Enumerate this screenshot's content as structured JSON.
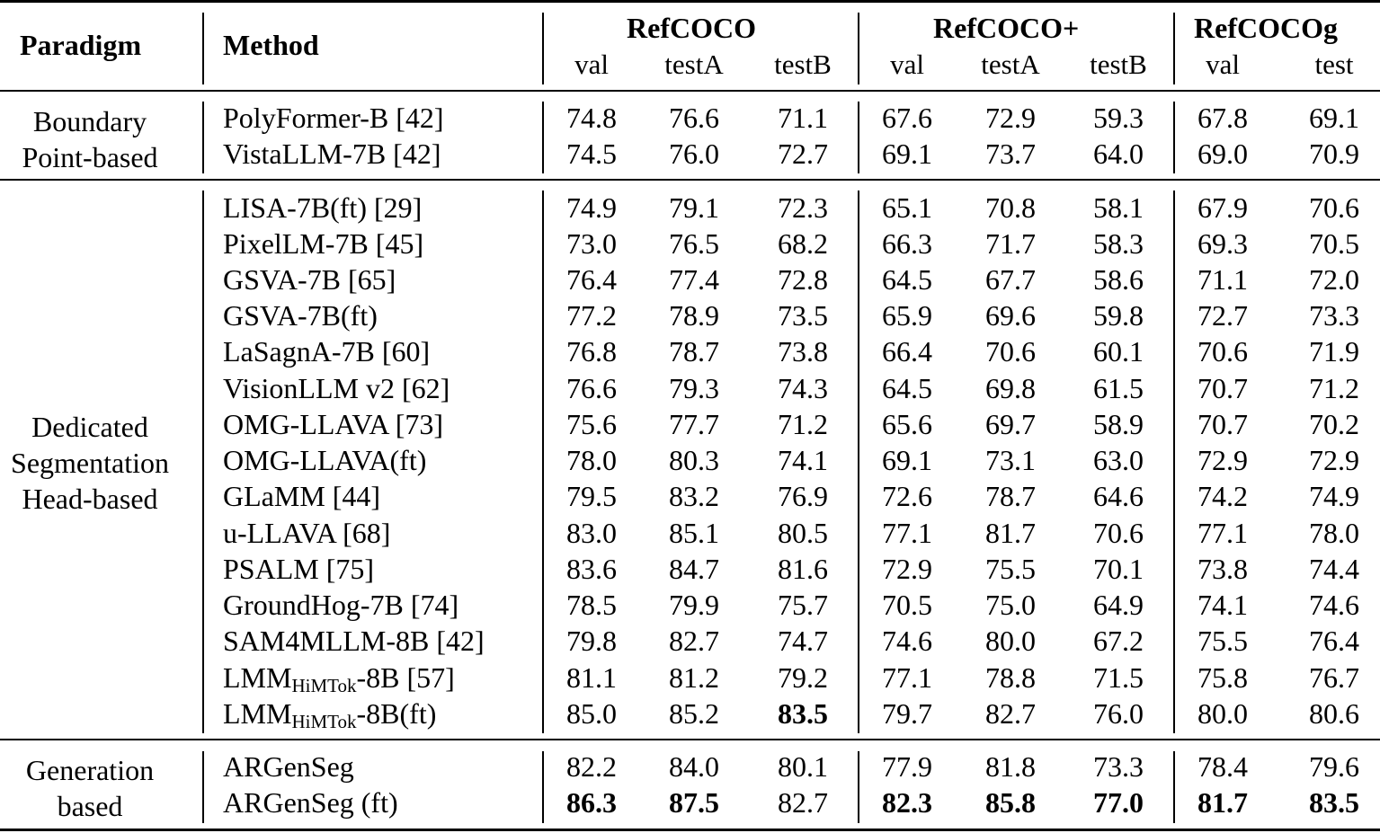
{
  "header": {
    "paradigm": "Paradigm",
    "method": "Method",
    "groups": [
      "RefCOCO",
      "RefCOCO+",
      "RefCOCOg"
    ],
    "splits": [
      "val",
      "testA",
      "testB",
      "val",
      "testA",
      "testB",
      "val",
      "test"
    ]
  },
  "sections": [
    {
      "paradigm_lines": [
        "Boundary",
        "Point-based"
      ],
      "rows": [
        {
          "method": "PolyFormer-B [42]",
          "values": [
            "74.8",
            "76.6",
            "71.1",
            "67.6",
            "72.9",
            "59.3",
            "67.8",
            "69.1"
          ],
          "bold": []
        },
        {
          "method": "VistaLLM-7B [42]",
          "values": [
            "74.5",
            "76.0",
            "72.7",
            "69.1",
            "73.7",
            "64.0",
            "69.0",
            "70.9"
          ],
          "bold": []
        }
      ]
    },
    {
      "paradigm_lines": [
        "Dedicated",
        "Segmentation",
        "Head-based"
      ],
      "rows": [
        {
          "method": "LISA-7B(ft) [29]",
          "values": [
            "74.9",
            "79.1",
            "72.3",
            "65.1",
            "70.8",
            "58.1",
            "67.9",
            "70.6"
          ],
          "bold": []
        },
        {
          "method": "PixelLM-7B [45]",
          "values": [
            "73.0",
            "76.5",
            "68.2",
            "66.3",
            "71.7",
            "58.3",
            "69.3",
            "70.5"
          ],
          "bold": []
        },
        {
          "method": "GSVA-7B [65]",
          "values": [
            "76.4",
            "77.4",
            "72.8",
            "64.5",
            "67.7",
            "58.6",
            "71.1",
            "72.0"
          ],
          "bold": []
        },
        {
          "method": "GSVA-7B(ft)",
          "values": [
            "77.2",
            "78.9",
            "73.5",
            "65.9",
            "69.6",
            "59.8",
            "72.7",
            "73.3"
          ],
          "bold": []
        },
        {
          "method": "LaSagnA-7B [60]",
          "values": [
            "76.8",
            "78.7",
            "73.8",
            "66.4",
            "70.6",
            "60.1",
            "70.6",
            "71.9"
          ],
          "bold": []
        },
        {
          "method": "VisionLLM v2 [62]",
          "values": [
            "76.6",
            "79.3",
            "74.3",
            "64.5",
            "69.8",
            "61.5",
            "70.7",
            "71.2"
          ],
          "bold": []
        },
        {
          "method": "OMG-LLAVA [73]",
          "values": [
            "75.6",
            "77.7",
            "71.2",
            "65.6",
            "69.7",
            "58.9",
            "70.7",
            "70.2"
          ],
          "bold": []
        },
        {
          "method": "OMG-LLAVA(ft)",
          "values": [
            "78.0",
            "80.3",
            "74.1",
            "69.1",
            "73.1",
            "63.0",
            "72.9",
            "72.9"
          ],
          "bold": []
        },
        {
          "method": "GLaMM [44]",
          "values": [
            "79.5",
            "83.2",
            "76.9",
            "72.6",
            "78.7",
            "64.6",
            "74.2",
            "74.9"
          ],
          "bold": []
        },
        {
          "method": "u-LLAVA [68]",
          "values": [
            "83.0",
            "85.1",
            "80.5",
            "77.1",
            "81.7",
            "70.6",
            "77.1",
            "78.0"
          ],
          "bold": []
        },
        {
          "method": "PSALM [75]",
          "values": [
            "83.6",
            "84.7",
            "81.6",
            "72.9",
            "75.5",
            "70.1",
            "73.8",
            "74.4"
          ],
          "bold": []
        },
        {
          "method": "GroundHog-7B [74]",
          "values": [
            "78.5",
            "79.9",
            "75.7",
            "70.5",
            "75.0",
            "64.9",
            "74.1",
            "74.6"
          ],
          "bold": []
        },
        {
          "method": "SAM4MLLM-8B [42]",
          "values": [
            "79.8",
            "82.7",
            "74.7",
            "74.6",
            "80.0",
            "67.2",
            "75.5",
            "76.4"
          ],
          "bold": []
        },
        {
          "method": "LMM",
          "method_sub": "HiMTok",
          "method_suffix": "-8B [57]",
          "values": [
            "81.1",
            "81.2",
            "79.2",
            "77.1",
            "78.8",
            "71.5",
            "75.8",
            "76.7"
          ],
          "bold": []
        },
        {
          "method": "LMM",
          "method_sub": "HiMTok",
          "method_suffix": "-8B(ft)",
          "values": [
            "85.0",
            "85.2",
            "83.5",
            "79.7",
            "82.7",
            "76.0",
            "80.0",
            "80.6"
          ],
          "bold": [
            2
          ]
        }
      ]
    },
    {
      "paradigm_lines": [
        "Generation",
        "based"
      ],
      "rows": [
        {
          "method": "ARGenSeg",
          "values": [
            "82.2",
            "84.0",
            "80.1",
            "77.9",
            "81.8",
            "73.3",
            "78.4",
            "79.6"
          ],
          "bold": []
        },
        {
          "method": "ARGenSeg (ft)",
          "values": [
            "86.3",
            "87.5",
            "82.7",
            "82.3",
            "85.8",
            "77.0",
            "81.7",
            "83.5"
          ],
          "bold": [
            0,
            1,
            3,
            4,
            5,
            6,
            7
          ]
        }
      ]
    }
  ]
}
